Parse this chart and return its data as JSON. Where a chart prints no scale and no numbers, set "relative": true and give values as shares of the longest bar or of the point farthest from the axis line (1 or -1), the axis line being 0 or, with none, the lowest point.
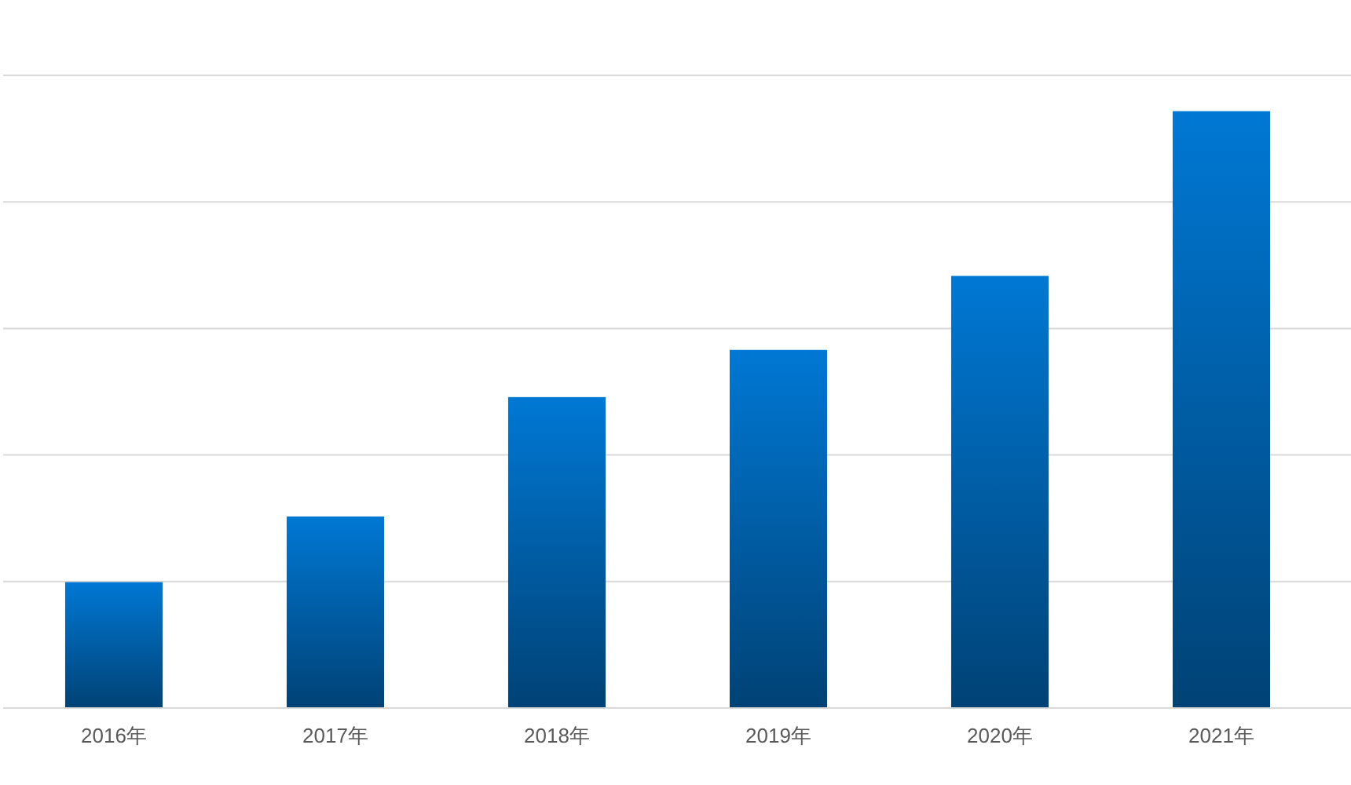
{
  "chart_data": {
    "type": "bar",
    "categories": [
      "2016年",
      "2017年",
      "2018年",
      "2019年",
      "2020年",
      "2021年"
    ],
    "values": [
      0.211,
      0.321,
      0.521,
      0.6,
      0.724,
      1
    ],
    "relative": true,
    "color": "#0078d4",
    "grid": "y"
  }
}
